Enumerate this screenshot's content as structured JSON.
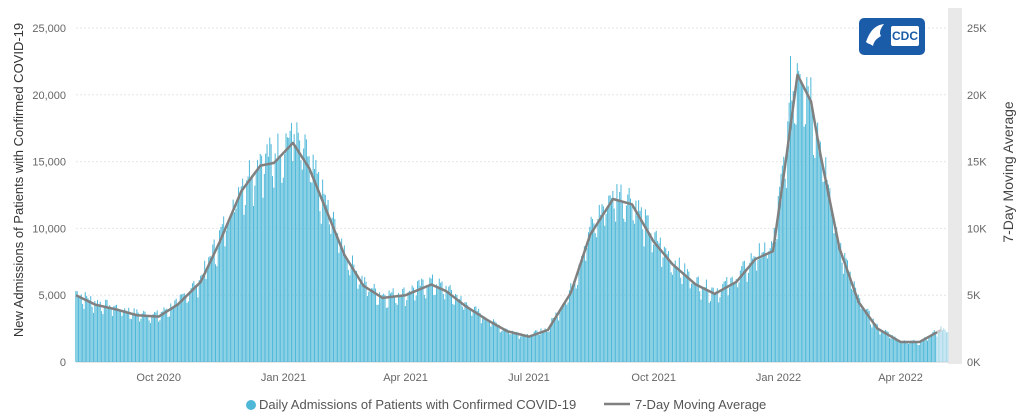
{
  "logo": {
    "text": "CDC"
  },
  "legend": {
    "bars": "Daily Admissions of Patients with Confirmed COVID-19",
    "line": "7-Day Moving Average"
  },
  "colors": {
    "bars": "#4fb8d8",
    "bars_faded": "#a9d9ea",
    "line": "#808080",
    "logo": "#1a5ca8"
  },
  "chart_data": {
    "type": "bar",
    "ylabel": "New Admissions of Patients with Confirmed COVID-19",
    "y2label": "7-Day Moving Average",
    "ylim": [
      0,
      25000
    ],
    "y_ticks": [
      "0",
      "5,000",
      "10,000",
      "15,000",
      "20,000",
      "25,000"
    ],
    "y2_ticks": [
      "0K",
      "5K",
      "10K",
      "15K",
      "20K",
      "25K"
    ],
    "x_ticks": [
      "Oct 2020",
      "Jan 2021",
      "Apr 2021",
      "Jul 2021",
      "Oct 2021",
      "Jan 2022",
      "Apr 2022"
    ],
    "x_range": [
      "2020-08-01",
      "2022-05-06"
    ],
    "moving_average": [
      {
        "date": "2020-08-01",
        "value": 5000
      },
      {
        "date": "2020-08-15",
        "value": 4300
      },
      {
        "date": "2020-09-01",
        "value": 3900
      },
      {
        "date": "2020-09-15",
        "value": 3500
      },
      {
        "date": "2020-10-01",
        "value": 3400
      },
      {
        "date": "2020-10-15",
        "value": 4300
      },
      {
        "date": "2020-11-01",
        "value": 6000
      },
      {
        "date": "2020-11-15",
        "value": 9000
      },
      {
        "date": "2020-12-01",
        "value": 12800
      },
      {
        "date": "2020-12-15",
        "value": 14700
      },
      {
        "date": "2020-12-25",
        "value": 14900
      },
      {
        "date": "2021-01-08",
        "value": 16400
      },
      {
        "date": "2021-01-20",
        "value": 14500
      },
      {
        "date": "2021-02-01",
        "value": 11500
      },
      {
        "date": "2021-02-15",
        "value": 8000
      },
      {
        "date": "2021-03-01",
        "value": 5700
      },
      {
        "date": "2021-03-15",
        "value": 4800
      },
      {
        "date": "2021-04-01",
        "value": 5000
      },
      {
        "date": "2021-04-20",
        "value": 5800
      },
      {
        "date": "2021-05-01",
        "value": 5300
      },
      {
        "date": "2021-05-15",
        "value": 4200
      },
      {
        "date": "2021-06-01",
        "value": 3100
      },
      {
        "date": "2021-06-15",
        "value": 2300
      },
      {
        "date": "2021-07-01",
        "value": 1900
      },
      {
        "date": "2021-07-15",
        "value": 2400
      },
      {
        "date": "2021-08-01",
        "value": 5200
      },
      {
        "date": "2021-08-15",
        "value": 9500
      },
      {
        "date": "2021-09-01",
        "value": 12200
      },
      {
        "date": "2021-09-15",
        "value": 11800
      },
      {
        "date": "2021-10-01",
        "value": 9000
      },
      {
        "date": "2021-10-15",
        "value": 7300
      },
      {
        "date": "2021-11-01",
        "value": 5800
      },
      {
        "date": "2021-11-15",
        "value": 5100
      },
      {
        "date": "2021-12-01",
        "value": 6000
      },
      {
        "date": "2021-12-15",
        "value": 7700
      },
      {
        "date": "2021-12-28",
        "value": 8300
      },
      {
        "date": "2022-01-07",
        "value": 15500
      },
      {
        "date": "2022-01-15",
        "value": 21500
      },
      {
        "date": "2022-01-25",
        "value": 19500
      },
      {
        "date": "2022-02-01",
        "value": 15500
      },
      {
        "date": "2022-02-15",
        "value": 8500
      },
      {
        "date": "2022-03-01",
        "value": 4500
      },
      {
        "date": "2022-03-15",
        "value": 2500
      },
      {
        "date": "2022-04-01",
        "value": 1500
      },
      {
        "date": "2022-04-15",
        "value": 1500
      },
      {
        "date": "2022-05-01",
        "value": 2400
      }
    ],
    "daily_peaks": [
      {
        "date": "2021-01-07",
        "value": 17900
      },
      {
        "date": "2021-09-01",
        "value": 12800
      },
      {
        "date": "2022-01-10",
        "value": 22900
      }
    ],
    "incomplete_from": "2022-04-28",
    "grid": true,
    "legend_position": "bottom"
  }
}
